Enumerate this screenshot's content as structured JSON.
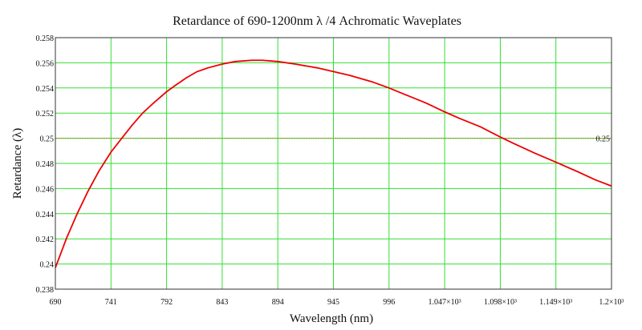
{
  "chart_data": {
    "type": "line",
    "title": "Retardance of 690-1200nm  λ /4 Achromatic Waveplates",
    "xlabel": "Wavelength (nm)",
    "ylabel": "Retardance (λ)",
    "xlim": [
      690,
      1200
    ],
    "ylim": [
      0.238,
      0.258
    ],
    "grid": true,
    "colors": {
      "grid": "#33dd33",
      "series": "#ee0000",
      "reference": "#999933",
      "frame": "#333333"
    },
    "x_ticks": [
      {
        "value": 690,
        "label": "690"
      },
      {
        "value": 741,
        "label": "741"
      },
      {
        "value": 792,
        "label": "792"
      },
      {
        "value": 843,
        "label": "843"
      },
      {
        "value": 894,
        "label": "894"
      },
      {
        "value": 945,
        "label": "945"
      },
      {
        "value": 996,
        "label": "996"
      },
      {
        "value": 1047,
        "label": "1.047×10³"
      },
      {
        "value": 1098,
        "label": "1.098×10³"
      },
      {
        "value": 1149,
        "label": "1.149×10³"
      },
      {
        "value": 1200,
        "label": "1.2×10³"
      }
    ],
    "y_ticks": [
      {
        "value": 0.238,
        "label": "0.238"
      },
      {
        "value": 0.24,
        "label": "0.24"
      },
      {
        "value": 0.242,
        "label": "0.242"
      },
      {
        "value": 0.244,
        "label": "0.244"
      },
      {
        "value": 0.246,
        "label": "0.246"
      },
      {
        "value": 0.248,
        "label": "0.248"
      },
      {
        "value": 0.25,
        "label": "0.25"
      },
      {
        "value": 0.252,
        "label": "0.252"
      },
      {
        "value": 0.254,
        "label": "0.254"
      },
      {
        "value": 0.256,
        "label": "0.256"
      },
      {
        "value": 0.258,
        "label": "0.258"
      }
    ],
    "series": [
      {
        "x": [
          690,
          700,
          710,
          720,
          730,
          741,
          750,
          760,
          770,
          780,
          792,
          800,
          810,
          820,
          830,
          843,
          855,
          870,
          880,
          894,
          910,
          930,
          945,
          960,
          980,
          996,
          1010,
          1030,
          1047,
          1060,
          1080,
          1098,
          1110,
          1130,
          1149,
          1170,
          1185,
          1200
        ],
        "values": [
          0.2397,
          0.242,
          0.244,
          0.2458,
          0.2474,
          0.2489,
          0.2499,
          0.251,
          0.252,
          0.2528,
          0.2537,
          0.2542,
          0.2548,
          0.2553,
          0.2556,
          0.2559,
          0.2561,
          0.2562,
          0.2562,
          0.2561,
          0.2559,
          0.2556,
          0.2553,
          0.255,
          0.2545,
          0.254,
          0.2535,
          0.2528,
          0.2521,
          0.2516,
          0.2509,
          0.2501,
          0.2496,
          0.2488,
          0.2481,
          0.2473,
          0.2467,
          0.2462
        ]
      }
    ],
    "reference_line": {
      "y": 0.25,
      "label": "0.25"
    }
  }
}
